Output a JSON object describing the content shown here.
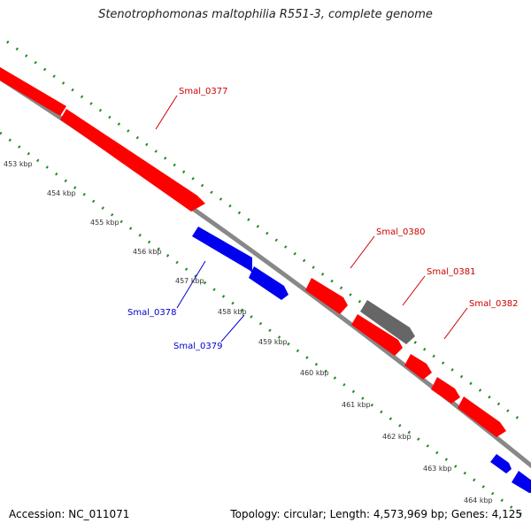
{
  "title": "Stenotrophomonas maltophilia R551-3, complete genome",
  "footer": {
    "accession": "Accession: NC_011071",
    "summary": "Topology: circular; Length: 4,573,969 bp; Genes: 4,125"
  },
  "colors": {
    "forward": "#ff0000",
    "forward_label": "#cc0000",
    "reverse": "#0000ee",
    "reverse_label": "#0000cc",
    "other": "#666666",
    "backbone": "#888888",
    "ticks": "#228b22",
    "tick_label": "#333333"
  },
  "ticks": [
    {
      "label": "453 kbp"
    },
    {
      "label": "454 kbp"
    },
    {
      "label": "455 kbp"
    },
    {
      "label": "456 kbp"
    },
    {
      "label": "457 kbp"
    },
    {
      "label": "458 kbp"
    },
    {
      "label": "459 kbp"
    },
    {
      "label": "460 kbp"
    },
    {
      "label": "461 kbp"
    },
    {
      "label": "462 kbp"
    },
    {
      "label": "463 kbp"
    },
    {
      "label": "464 kbp"
    }
  ],
  "genes": [
    {
      "name": "Smal_0377",
      "strand": "forward",
      "color": "forward"
    },
    {
      "name": "Smal_0378",
      "strand": "reverse",
      "color": "reverse"
    },
    {
      "name": "Smal_0379",
      "strand": "reverse",
      "color": "reverse"
    },
    {
      "name": "Smal_0380",
      "strand": "forward",
      "color": "forward"
    },
    {
      "name": "Smal_0381",
      "strand": "forward",
      "color": "other"
    },
    {
      "name": "Smal_0382",
      "strand": "forward",
      "color": "forward"
    }
  ]
}
